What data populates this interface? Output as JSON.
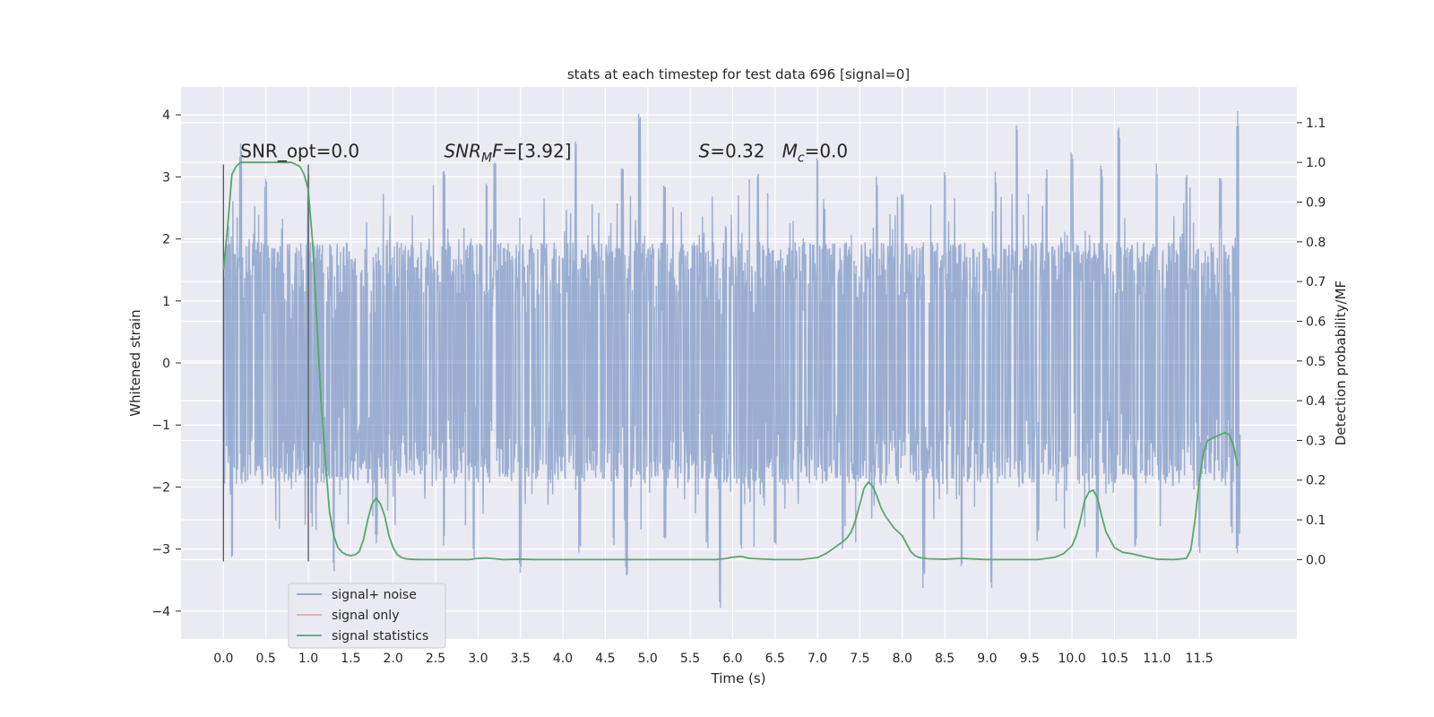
{
  "chart_data": {
    "type": "line",
    "title": "stats at each timestep for test data 696 [signal=0]",
    "xlabel": "Time (s)",
    "ylabel_left": "Whitened strain",
    "ylabel_right": "Detection probability/MF",
    "xlim": [
      -0.5,
      12.65
    ],
    "ylim_left": [
      -4.45,
      4.45
    ],
    "ylim_right": [
      -0.2,
      1.19
    ],
    "x_ticks": [
      0.0,
      0.5,
      1.0,
      1.5,
      2.0,
      2.5,
      3.0,
      3.5,
      4.0,
      4.5,
      5.0,
      5.5,
      6.0,
      6.5,
      7.0,
      7.5,
      8.0,
      8.5,
      9.0,
      9.5,
      10.0,
      10.5,
      11.0,
      11.5
    ],
    "x_tick_labels": [
      "0.0",
      "0.5",
      "1.0",
      "1.5",
      "2.0",
      "2.5",
      "3.0",
      "3.5",
      "4.0",
      "4.5",
      "5.0",
      "5.5",
      "6.0",
      "6.5",
      "7.0",
      "7.5",
      "8.0",
      "8.5",
      "9.0",
      "9.5",
      "10.0",
      "10.5",
      "11.0",
      "11.5"
    ],
    "y_left_ticks": [
      -4,
      -3,
      -2,
      -1,
      0,
      1,
      2,
      3,
      4
    ],
    "y_left_tick_labels": [
      "−4",
      "−3",
      "−2",
      "−1",
      "0",
      "1",
      "2",
      "3",
      "4"
    ],
    "y_right_ticks": [
      0.0,
      0.1,
      0.2,
      0.3,
      0.4,
      0.5,
      0.6,
      0.7,
      0.8,
      0.9,
      1.0,
      1.1
    ],
    "y_right_tick_labels": [
      "0.0",
      "0.1",
      "0.2",
      "0.3",
      "0.4",
      "0.5",
      "0.6",
      "0.7",
      "0.8",
      "0.9",
      "1.0",
      "1.1"
    ],
    "grid": true,
    "legend_position": "lower-left",
    "annotations": [
      {
        "text": "SNR_opt=0.0",
        "x": 0.2,
        "y": 3.2
      },
      {
        "text": "SNR_M F=[3.92]",
        "x": 2.6,
        "y": 3.2
      },
      {
        "text": "S=0.32   M_c=0.0",
        "x": 5.6,
        "y": 3.2
      }
    ],
    "vlines": [
      {
        "x": 0.0,
        "ymin": -3.2,
        "ymax": 3.2
      },
      {
        "x": 1.0,
        "ymin": -3.2,
        "ymax": 3.2
      }
    ],
    "noise": {
      "name": "signal+ noise",
      "color": "#4c72b0",
      "x_range": [
        0.0,
        11.98
      ],
      "core_amplitude": 1.95,
      "peaks_upper": [
        [
          0.2,
          3.55
        ],
        [
          0.5,
          3.0
        ],
        [
          1.0,
          3.2
        ],
        [
          2.6,
          3.3
        ],
        [
          3.1,
          3.1
        ],
        [
          3.2,
          3.4
        ],
        [
          4.15,
          3.65
        ],
        [
          4.7,
          3.25
        ],
        [
          4.9,
          4.05
        ],
        [
          5.2,
          3.0
        ],
        [
          6.3,
          3.2
        ],
        [
          7.0,
          3.35
        ],
        [
          7.7,
          3.05
        ],
        [
          8.0,
          2.9
        ],
        [
          8.5,
          3.2
        ],
        [
          9.1,
          3.1
        ],
        [
          9.35,
          3.95
        ],
        [
          9.7,
          3.15
        ],
        [
          10.0,
          3.45
        ],
        [
          10.35,
          3.2
        ],
        [
          10.55,
          3.85
        ],
        [
          11.0,
          3.3
        ],
        [
          11.35,
          3.05
        ],
        [
          11.75,
          3.1
        ],
        [
          11.95,
          4.1
        ]
      ],
      "peaks_lower": [
        [
          0.1,
          -3.2
        ],
        [
          1.3,
          -3.5
        ],
        [
          1.8,
          -2.95
        ],
        [
          2.6,
          -3.0
        ],
        [
          2.95,
          -3.2
        ],
        [
          3.5,
          -3.45
        ],
        [
          4.2,
          -3.1
        ],
        [
          4.6,
          -3.0
        ],
        [
          4.75,
          -3.5
        ],
        [
          5.2,
          -2.95
        ],
        [
          5.7,
          -3.0
        ],
        [
          5.85,
          -4.1
        ],
        [
          6.1,
          -3.15
        ],
        [
          6.5,
          -2.95
        ],
        [
          7.3,
          -3.1
        ],
        [
          8.25,
          -3.65
        ],
        [
          8.7,
          -3.45
        ],
        [
          9.05,
          -3.75
        ],
        [
          9.6,
          -2.9
        ],
        [
          10.3,
          -3.2
        ],
        [
          10.75,
          -3.05
        ],
        [
          11.5,
          -3.2
        ],
        [
          11.95,
          -3.2
        ]
      ]
    },
    "signal_only": {
      "name": "signal only",
      "color": "#dd8452"
    },
    "series": [
      {
        "name": "signal statistics",
        "color": "#55a868",
        "axis": "right",
        "x": [
          0.0,
          0.05,
          0.1,
          0.15,
          0.2,
          0.3,
          0.4,
          0.5,
          0.6,
          0.7,
          0.8,
          0.85,
          0.9,
          0.95,
          1.0,
          1.05,
          1.1,
          1.15,
          1.2,
          1.25,
          1.3,
          1.35,
          1.4,
          1.45,
          1.5,
          1.55,
          1.6,
          1.65,
          1.7,
          1.75,
          1.8,
          1.85,
          1.9,
          1.95,
          2.0,
          2.05,
          2.1,
          2.15,
          2.2,
          2.3,
          2.5,
          2.7,
          2.9,
          3.0,
          3.1,
          3.3,
          3.5,
          3.7,
          4.0,
          4.5,
          5.0,
          5.5,
          5.8,
          5.9,
          6.0,
          6.1,
          6.2,
          6.5,
          6.8,
          7.0,
          7.1,
          7.2,
          7.3,
          7.35,
          7.4,
          7.45,
          7.5,
          7.55,
          7.6,
          7.65,
          7.7,
          7.75,
          7.8,
          7.85,
          7.9,
          8.0,
          8.05,
          8.1,
          8.15,
          8.2,
          8.3,
          8.5,
          8.7,
          8.9,
          9.0,
          9.2,
          9.4,
          9.6,
          9.8,
          9.9,
          10.0,
          10.05,
          10.1,
          10.15,
          10.2,
          10.25,
          10.3,
          10.35,
          10.4,
          10.5,
          10.6,
          10.7,
          10.8,
          10.9,
          11.0,
          11.2,
          11.35,
          11.4,
          11.45,
          11.5,
          11.55,
          11.6,
          11.65,
          11.7,
          11.75,
          11.8,
          11.85,
          11.9,
          11.95
        ],
        "y": [
          0.73,
          0.84,
          0.97,
          0.99,
          1.0,
          1.0,
          1.0,
          1.0,
          1.0,
          1.0,
          1.0,
          0.995,
          0.99,
          0.97,
          0.93,
          0.8,
          0.6,
          0.4,
          0.25,
          0.12,
          0.06,
          0.03,
          0.018,
          0.012,
          0.01,
          0.012,
          0.02,
          0.05,
          0.1,
          0.14,
          0.155,
          0.14,
          0.11,
          0.06,
          0.03,
          0.012,
          0.005,
          0.002,
          0.001,
          0.0,
          0.0,
          0.0,
          0.0,
          0.003,
          0.004,
          0.0,
          0.001,
          0.0,
          0.0,
          0.0,
          0.0,
          0.0,
          0.0,
          0.002,
          0.006,
          0.008,
          0.003,
          0.0,
          0.0,
          0.005,
          0.015,
          0.03,
          0.045,
          0.055,
          0.07,
          0.1,
          0.14,
          0.18,
          0.195,
          0.185,
          0.16,
          0.13,
          0.11,
          0.095,
          0.08,
          0.06,
          0.04,
          0.02,
          0.01,
          0.005,
          0.002,
          0.001,
          0.003,
          0.001,
          0.0,
          0.0,
          0.0,
          0.0,
          0.006,
          0.015,
          0.035,
          0.06,
          0.1,
          0.15,
          0.17,
          0.175,
          0.155,
          0.11,
          0.07,
          0.03,
          0.018,
          0.015,
          0.01,
          0.005,
          0.001,
          0.0,
          0.003,
          0.025,
          0.1,
          0.2,
          0.27,
          0.3,
          0.305,
          0.31,
          0.315,
          0.32,
          0.315,
          0.29,
          0.235
        ]
      }
    ]
  }
}
